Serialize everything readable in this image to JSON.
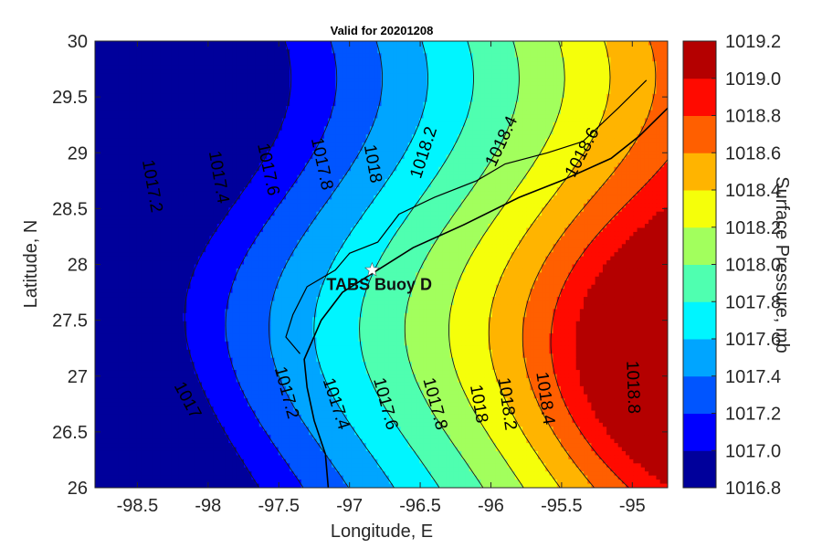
{
  "chart_data": {
    "type": "heatmap",
    "title": "Valid for 20201208",
    "xlabel": "Longitude, E",
    "ylabel": "Latitude, N",
    "xlim": [
      -98.8,
      -94.75
    ],
    "ylim": [
      26,
      30
    ],
    "x_ticks": [
      "-98.5",
      "-98",
      "-97.5",
      "-97",
      "-96.5",
      "-96",
      "-95.5",
      "-95"
    ],
    "x_tick_values": [
      -98.5,
      -98,
      -97.5,
      -97,
      -96.5,
      -96,
      -95.5,
      -95
    ],
    "y_ticks": [
      "26",
      "26.5",
      "27",
      "27.5",
      "28",
      "28.5",
      "29",
      "29.5",
      "30"
    ],
    "y_tick_values": [
      26,
      26.5,
      27,
      27.5,
      28,
      28.5,
      29,
      29.5,
      30
    ],
    "colorbar": {
      "label": "Surface Pressure, mb",
      "range": [
        1016.8,
        1019.2
      ],
      "ticks": [
        "1016.8",
        "1017.0",
        "1017.2",
        "1017.4",
        "1017.6",
        "1017.8",
        "1018.0",
        "1018.2",
        "1018.4",
        "1018.6",
        "1018.8",
        "1019.0",
        "1019.2"
      ],
      "colors": [
        "#00009b",
        "#0000ff",
        "#0055ff",
        "#00a5ff",
        "#00f5ff",
        "#4fffb0",
        "#a2ff5d",
        "#f5ff0a",
        "#ffb400",
        "#ff5f00",
        "#ff0a00",
        "#b40000"
      ]
    },
    "contour_levels": [
      1017.0,
      1017.2,
      1017.4,
      1017.6,
      1017.8,
      1018.0,
      1018.2,
      1018.4,
      1018.6,
      1018.8
    ],
    "contour_labels": [
      {
        "text": "1017.2",
        "lon": -98.4,
        "lat": 28.7,
        "angle": 80
      },
      {
        "text": "1017.4",
        "lon": -97.93,
        "lat": 28.78,
        "angle": 80
      },
      {
        "text": "1017.6",
        "lon": -97.58,
        "lat": 28.85,
        "angle": 78
      },
      {
        "text": "1017.8",
        "lon": -97.2,
        "lat": 28.9,
        "angle": 78
      },
      {
        "text": "1018",
        "lon": -96.84,
        "lat": 28.9,
        "angle": 80
      },
      {
        "text": "1018.2",
        "lon": -96.47,
        "lat": 29.0,
        "angle": -72
      },
      {
        "text": "1018.4",
        "lon": -95.92,
        "lat": 29.1,
        "angle": -65
      },
      {
        "text": "1018.6",
        "lon": -95.35,
        "lat": 29.0,
        "angle": -62
      },
      {
        "text": "1017",
        "lon": -98.15,
        "lat": 26.78,
        "angle": 62
      },
      {
        "text": "1017.2",
        "lon": -97.45,
        "lat": 26.85,
        "angle": 75
      },
      {
        "text": "1017.4",
        "lon": -97.1,
        "lat": 26.75,
        "angle": 72
      },
      {
        "text": "1017.6",
        "lon": -96.75,
        "lat": 26.75,
        "angle": 75
      },
      {
        "text": "1017.8",
        "lon": -96.4,
        "lat": 26.75,
        "angle": 75
      },
      {
        "text": "1018",
        "lon": -96.09,
        "lat": 26.75,
        "angle": 80
      },
      {
        "text": "1018.2",
        "lon": -95.89,
        "lat": 26.75,
        "angle": 82
      },
      {
        "text": "1018.4",
        "lon": -95.62,
        "lat": 26.8,
        "angle": 82
      },
      {
        "text": "1018.8",
        "lon": -95.0,
        "lat": 26.9,
        "angle": 88
      }
    ],
    "marker": {
      "label": "TABS Buoy D",
      "lon": -96.84,
      "lat": 27.95
    }
  }
}
